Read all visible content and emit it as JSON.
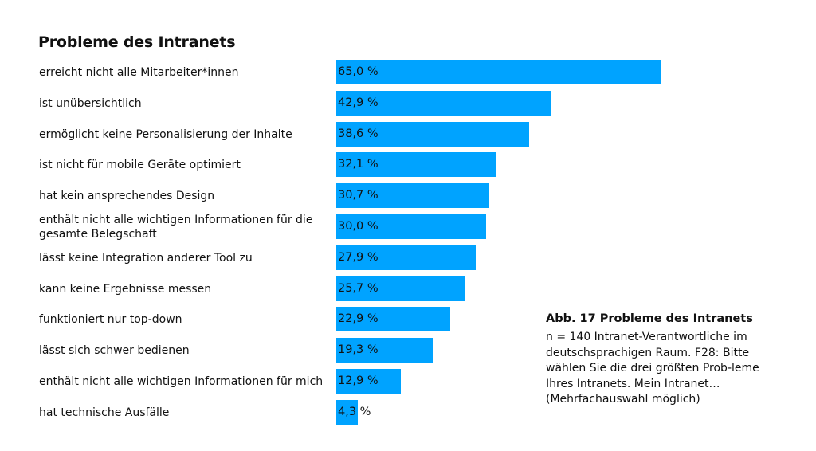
{
  "title": "Probleme des Intranets",
  "rows": [
    {
      "label": "erreicht nicht alle Mitarbeiter*innen",
      "value": 65.0,
      "display": "65,0 %"
    },
    {
      "label": "ist unübersichtlich",
      "value": 42.9,
      "display": "42,9 %"
    },
    {
      "label": "ermöglicht keine Personalisierung der Inhalte",
      "value": 38.6,
      "display": "38,6 %"
    },
    {
      "label": "ist nicht für mobile Geräte optimiert",
      "value": 32.1,
      "display": "32,1 %"
    },
    {
      "label": "hat kein ansprechendes Design",
      "value": 30.7,
      "display": "30,7 %"
    },
    {
      "label": "enthält nicht alle wichtigen Informationen für die gesamte Belegschaft",
      "value": 30.0,
      "display": "30,0 %"
    },
    {
      "label": "lässt keine Integration anderer Tool zu",
      "value": 27.9,
      "display": "27,9 %"
    },
    {
      "label": "kann keine Ergebnisse messen",
      "value": 25.7,
      "display": "25,7 %"
    },
    {
      "label": "funktioniert nur top-down",
      "value": 22.9,
      "display": "22,9 %"
    },
    {
      "label": "lässt sich schwer bedienen",
      "value": 19.3,
      "display": "19,3 %"
    },
    {
      "label": "enthält nicht alle wichtigen Informationen für mich",
      "value": 12.9,
      "display": "12,9 %"
    },
    {
      "label": "hat technische Ausfälle",
      "value": 4.3,
      "display": "4,3 %"
    }
  ],
  "note": {
    "title": "Abb. 17 Probleme des Intranets",
    "body": "n = 140 Intranet-Verantwortliche im deutschsprachigen Raum. F28: Bitte wählen Sie die drei größten Prob-leme Ihres Intranets. Mein Intranet… (Mehrfachauswahl möglich)"
  },
  "colors": {
    "bar": "#00a3ff",
    "text": "#111111"
  },
  "chart_data": {
    "type": "bar",
    "orientation": "horizontal",
    "title": "Probleme des Intranets",
    "categories": [
      "erreicht nicht alle Mitarbeiter*innen",
      "ist unübersichtlich",
      "ermöglicht keine Personalisierung der Inhalte",
      "ist nicht für mobile Geräte optimiert",
      "hat kein ansprechendes Design",
      "enthält nicht alle wichtigen Informationen für die gesamte Belegschaft",
      "lässt keine Integration anderer Tool zu",
      "kann keine Ergebnisse messen",
      "funktioniert nur top-down",
      "lässt sich schwer bedienen",
      "enthält nicht alle wichtigen Informationen für mich",
      "hat technische Ausfälle"
    ],
    "values": [
      65.0,
      42.9,
      38.6,
      32.1,
      30.7,
      30.0,
      27.9,
      25.7,
      22.9,
      19.3,
      12.9,
      4.3
    ],
    "unit": "%",
    "xlabel": "",
    "ylabel": "",
    "grid": false,
    "legend": false,
    "annotation": "Abb. 17 Probleme des Intranets — n = 140 Intranet-Verantwortliche im deutschsprachigen Raum. F28: Bitte wählen Sie die drei größten Probleme Ihres Intranets. Mein Intranet… (Mehrfachauswahl möglich)"
  }
}
